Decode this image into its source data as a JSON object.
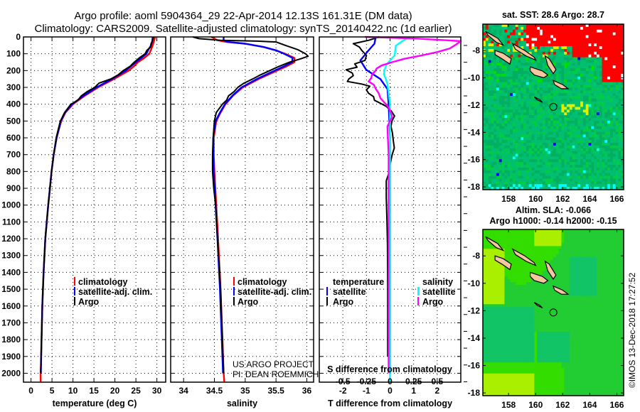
{
  "title": {
    "line1": "Argo profile: aoml 5904364_29 22-Apr-2014 12.13S 161.31E (DM data)",
    "line2": "Climatology: CARS2009. Satellite-adjusted climatology: synTS_20140422.nc (1d earlier)"
  },
  "credit": {
    "line1": "US ARGO PROJECT",
    "line2": "PI: DEAN ROEMMICH"
  },
  "timestamp": "©IMOS 13-Dec-2018 17:27:52",
  "colors": {
    "climatology": "#ff0000",
    "satellite": "#0000ff",
    "argo": "#000000",
    "sal_satellite": "#00ffff",
    "sal_argo": "#ff00ff"
  },
  "chart_data": [
    {
      "type": "line",
      "id": "temperature",
      "xlabel": "temperature (deg C)",
      "ylabel": "",
      "xlim": [
        -1.8,
        32.1
      ],
      "ylim": [
        0,
        2053
      ],
      "yinverted": true,
      "xticks": [
        0,
        5,
        10,
        15,
        20,
        25,
        30
      ],
      "yticks": [
        0,
        100,
        200,
        300,
        400,
        500,
        600,
        700,
        800,
        900,
        1000,
        1100,
        1200,
        1300,
        1400,
        1500,
        1600,
        1700,
        1800,
        1900,
        2000
      ],
      "grid": true,
      "legend": {
        "placement": "lower-center",
        "entries": [
          "climatology",
          "satellite-adj. clim.",
          "Argo"
        ]
      },
      "series": [
        {
          "name": "climatology",
          "color": "#ff0000",
          "depth": [
            0,
            25,
            50,
            75,
            100,
            125,
            150,
            175,
            200,
            250,
            300,
            350,
            400,
            450,
            500,
            600,
            700,
            800,
            900,
            1000,
            1200,
            1400,
            1600,
            1800,
            2000,
            2050
          ],
          "values": [
            29.6,
            29.3,
            29.0,
            28.6,
            28.2,
            27.0,
            25.5,
            24.5,
            23.3,
            19.8,
            16.0,
            12.8,
            10.0,
            8.2,
            7.2,
            6.1,
            5.4,
            4.9,
            4.5,
            4.1,
            3.4,
            3.0,
            2.7,
            2.5,
            2.3,
            2.3
          ]
        },
        {
          "name": "satellite-adj. clim.",
          "color": "#0000ff",
          "depth": [
            0,
            25,
            50,
            75,
            100,
            125,
            150,
            175,
            200,
            250,
            300,
            350,
            400,
            450,
            500,
            600,
            700,
            800,
            900,
            1000,
            1200,
            1400,
            1600,
            1800,
            2000
          ],
          "values": [
            29.0,
            28.9,
            28.6,
            28.0,
            27.5,
            26.3,
            25.0,
            23.8,
            22.6,
            19.3,
            15.6,
            12.5,
            9.8,
            8.1,
            7.1,
            6.1,
            5.4,
            4.9,
            4.5,
            4.1,
            3.4,
            3.0,
            2.7,
            2.5,
            2.35
          ]
        },
        {
          "name": "Argo",
          "color": "#000000",
          "depth": [
            0,
            20,
            40,
            60,
            80,
            100,
            125,
            150,
            175,
            200,
            225,
            250,
            275,
            300,
            325,
            350,
            375,
            400,
            450,
            500,
            600,
            700,
            800,
            900,
            1000,
            1200,
            1400,
            1600,
            1800,
            2000
          ],
          "values": [
            29.2,
            29.0,
            28.6,
            28.5,
            27.6,
            27.2,
            25.8,
            24.6,
            23.6,
            22.0,
            20.8,
            19.0,
            16.2,
            15.2,
            13.4,
            12.0,
            11.2,
            9.5,
            8.0,
            7.0,
            6.0,
            5.4,
            4.9,
            4.5,
            4.1,
            3.4,
            3.0,
            2.7,
            2.5,
            2.3
          ]
        }
      ]
    },
    {
      "type": "line",
      "id": "salinity",
      "xlabel": "salinity",
      "xlim": [
        33.79,
        36.11
      ],
      "ylim": [
        0,
        2053
      ],
      "yinverted": true,
      "xticks": [
        34,
        34.5,
        35,
        35.5,
        36
      ],
      "grid": true,
      "legend": {
        "placement": "lower-center",
        "entries": [
          "climatology",
          "satellite-adj. clim.",
          "Argo"
        ]
      },
      "series": [
        {
          "name": "climatology",
          "color": "#ff0000",
          "depth": [
            0,
            20,
            30,
            40,
            60,
            80,
            100,
            125,
            150,
            175,
            200,
            250,
            300,
            350,
            400,
            450,
            500,
            600,
            700,
            800,
            1000,
            1200,
            1500,
            1800,
            2000,
            2050
          ],
          "values": [
            34.45,
            34.55,
            34.7,
            35.0,
            35.3,
            35.5,
            35.65,
            35.8,
            35.8,
            35.67,
            35.52,
            35.22,
            34.96,
            34.8,
            34.68,
            34.6,
            34.53,
            34.49,
            34.49,
            34.5,
            34.53,
            34.56,
            34.6,
            34.63,
            34.65,
            34.66
          ]
        },
        {
          "name": "satellite-adj. clim.",
          "color": "#0000ff",
          "depth": [
            0,
            20,
            30,
            40,
            60,
            80,
            100,
            125,
            150,
            175,
            200,
            250,
            300,
            350,
            400,
            450,
            500,
            600,
            700,
            800,
            1000,
            1200,
            1500,
            1800,
            2000
          ],
          "values": [
            34.65,
            34.65,
            34.72,
            35.0,
            35.3,
            35.5,
            35.63,
            35.77,
            35.76,
            35.63,
            35.48,
            35.19,
            34.94,
            34.79,
            34.67,
            34.59,
            34.52,
            34.48,
            34.48,
            34.49,
            34.52,
            34.55,
            34.59,
            34.62,
            34.64
          ]
        },
        {
          "name": "Argo",
          "color": "#000000",
          "depth": [
            0,
            10,
            20,
            25,
            30,
            50,
            75,
            100,
            115,
            130,
            150,
            175,
            200,
            225,
            250,
            275,
            300,
            325,
            350,
            375,
            400,
            450,
            500,
            600,
            700,
            800,
            900,
            1000,
            1200,
            1500,
            1800,
            2000
          ],
          "values": [
            34.15,
            34.25,
            34.6,
            35.2,
            35.5,
            35.65,
            35.85,
            35.98,
            36.02,
            35.9,
            35.72,
            35.55,
            35.4,
            35.25,
            35.12,
            34.98,
            34.88,
            34.82,
            34.73,
            34.7,
            34.63,
            34.53,
            34.5,
            34.48,
            34.47,
            34.47,
            34.49,
            34.52,
            34.55,
            34.6,
            34.63,
            34.65
          ]
        }
      ]
    },
    {
      "type": "line",
      "id": "difference",
      "xlabel": "T difference from climatology",
      "x2label": "S difference from climatology",
      "xlim": [
        -3,
        3
      ],
      "x2lim": [
        -0.75,
        0.75
      ],
      "ylim": [
        0,
        2053
      ],
      "yinverted": true,
      "xticks": [
        -2,
        -1,
        0,
        1,
        2
      ],
      "x2ticks": [
        "-0.5",
        "-0.25",
        "0",
        "0.25",
        "0.5"
      ],
      "x2tick_values": [
        -0.5,
        -0.25,
        0,
        0.25,
        0.5
      ],
      "grid": true,
      "legend": {
        "placement": "lower-center",
        "temperature_title": "temperature",
        "salinity_title": "salinity",
        "entries": [
          "satellite",
          "Argo",
          "satellite",
          "Argo"
        ]
      },
      "series": [
        {
          "name": "temperature satellite",
          "axis": "T",
          "color": "#0000ff",
          "depth": [
            0,
            40,
            80,
            140,
            195,
            250,
            310,
            400,
            600,
            1000,
            2000
          ],
          "values": [
            -0.61,
            -0.66,
            -0.91,
            -1.26,
            -1.01,
            -0.41,
            -0.11,
            -0.06,
            0.0,
            0.0,
            0.0
          ]
        },
        {
          "name": "temperature Argo",
          "axis": "T",
          "color": "#000000",
          "depth": [
            0,
            20,
            40,
            60,
            80,
            110,
            140,
            160,
            180,
            195,
            215,
            230,
            250,
            265,
            280,
            293,
            315,
            335,
            355,
            377,
            395,
            413,
            440,
            470,
            500,
            532,
            570,
            617,
            660,
            700,
            760,
            814,
            856,
            955,
            1100,
            1237,
            1500,
            1800,
            1900
          ],
          "values": [
            -0.46,
            -0.9,
            -1.56,
            -1.3,
            -1.2,
            -1.0,
            -1.06,
            -1.5,
            -1.4,
            -1.86,
            -1.6,
            -1.56,
            -1.75,
            -1.81,
            -1.2,
            -0.86,
            -1.0,
            -0.91,
            -0.7,
            -0.66,
            -0.4,
            -0.16,
            0.05,
            0.19,
            0.08,
            0.04,
            0.1,
            0.14,
            0.18,
            0.09,
            0.0,
            -0.06,
            -0.16,
            -0.16,
            -0.13,
            -0.11,
            -0.1,
            -0.1,
            -0.1
          ]
        },
        {
          "name": "salinity satellite",
          "axis": "S",
          "color": "#00ffff",
          "depth": [
            0,
            25,
            53,
            80,
            110,
            140,
            166,
            200,
            222,
            250,
            279,
            335,
            400,
            2050
          ],
          "values": [
            0.21,
            0.13,
            0.06,
            0.055,
            0.048,
            0.0,
            -0.04,
            -0.06,
            -0.065,
            -0.045,
            -0.028,
            -0.015,
            0.0,
            0.0
          ]
        },
        {
          "name": "salinity Argo",
          "axis": "S",
          "color": "#ff00ff",
          "depth": [
            0,
            10,
            25,
            45,
            68,
            90,
            110,
            130,
            152,
            170,
            187,
            205,
            222,
            245,
            265,
            285,
            307,
            335,
            363,
            390,
            420,
            450,
            476,
            500,
            532,
            700,
            2000
          ],
          "values": [
            -0.265,
            0.3,
            0.75,
            0.7,
            0.635,
            0.5,
            0.335,
            0.15,
            0.01,
            -0.09,
            -0.14,
            -0.16,
            -0.19,
            -0.2,
            -0.228,
            -0.17,
            -0.153,
            -0.12,
            -0.103,
            -0.06,
            -0.015,
            0.01,
            0.023,
            0.0,
            -0.028,
            -0.015,
            -0.015
          ]
        }
      ]
    }
  ],
  "maps": [
    {
      "id": "sst",
      "title": "sat. SST: 28.6 Argo: 28.7",
      "lon_ticks": [
        "158",
        "160",
        "162",
        "164",
        "166"
      ],
      "lat_ticks": [
        "-8",
        "-10",
        "-12",
        "-14",
        "-16",
        "-18"
      ],
      "argo_lon": 161.31,
      "argo_lat": -12.13
    },
    {
      "id": "sla",
      "title": "Altim. SLA: -0.066",
      "subtitle": "Argo h1000: -0.14 h2000: -0.15",
      "lon_ticks": [
        "158",
        "160",
        "162",
        "164",
        "166"
      ],
      "lat_ticks": [
        "-8",
        "-10",
        "-12",
        "-14",
        "-16",
        "-18"
      ],
      "argo_lon": 161.31,
      "argo_lat": -12.13
    }
  ]
}
